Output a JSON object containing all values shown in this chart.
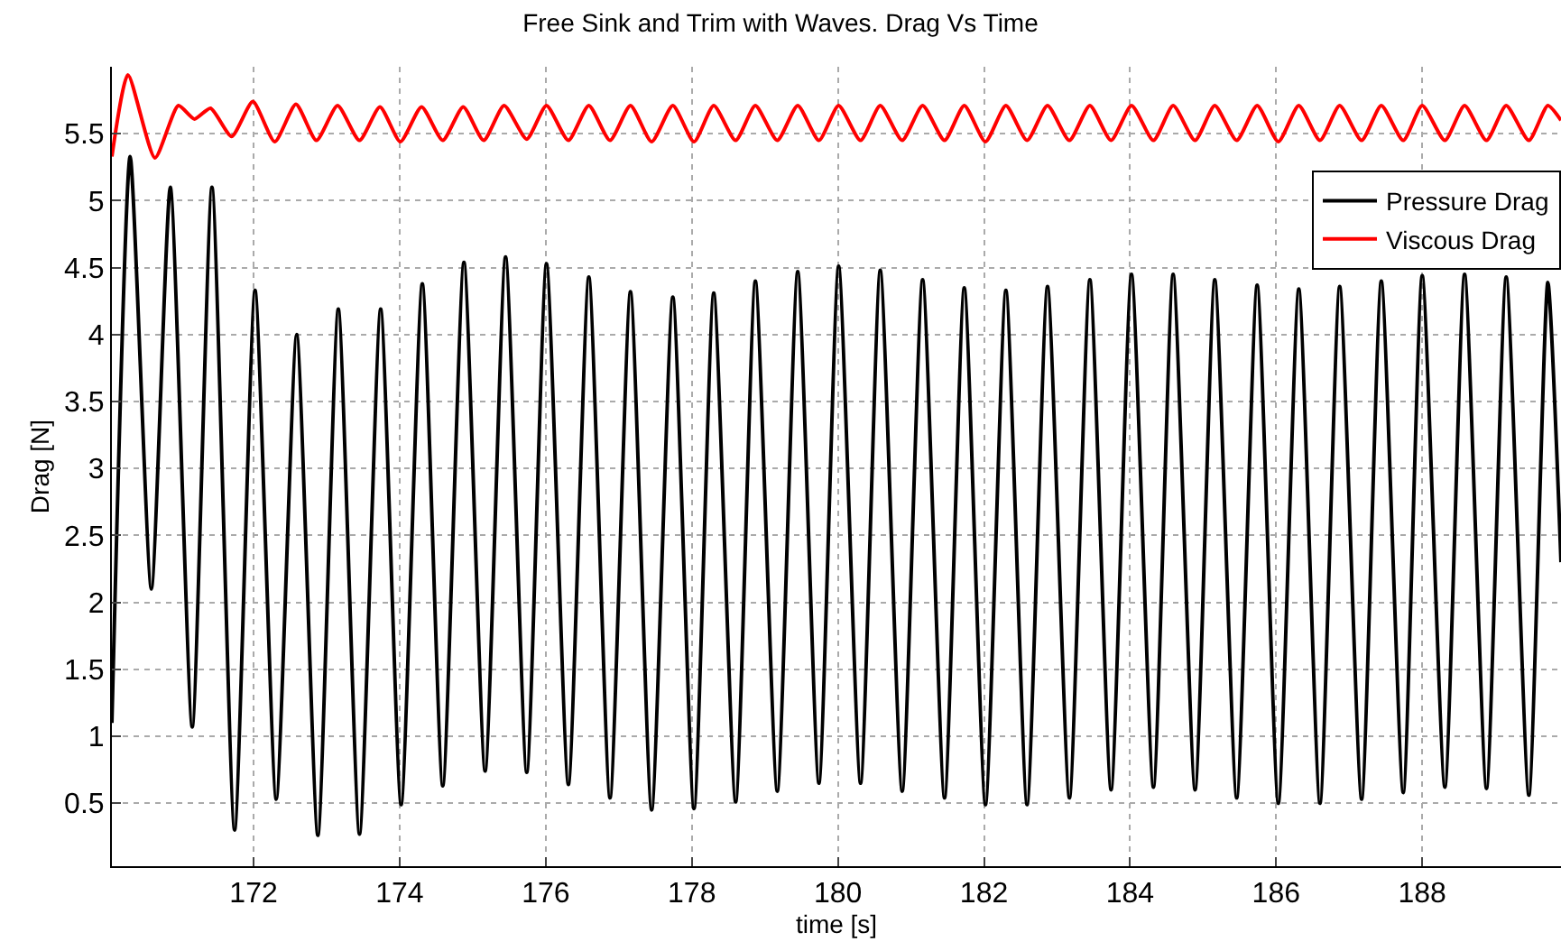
{
  "chart_data": {
    "type": "line",
    "title": "Free Sink and Trim with Waves. Drag Vs Time",
    "xlabel": "time [s]",
    "ylabel": "Drag [N]",
    "xlim": [
      170.06,
      189.9
    ],
    "xticks": [
      172,
      174,
      176,
      178,
      180,
      182,
      184,
      186,
      188
    ],
    "ylim": [
      0.03,
      6
    ],
    "yticks": [
      0.5,
      1,
      1.5,
      2,
      2.5,
      3,
      3.5,
      4,
      4.5,
      5,
      5.5
    ],
    "grid": true,
    "legend": "top right",
    "marker": "none",
    "line_style": "solid",
    "series": [
      {
        "name": "Pressure Drag",
        "color": "#000000",
        "x": [
          170.06,
          170.31,
          170.6,
          170.86,
          171.16,
          171.43,
          171.74,
          172.02,
          172.31,
          172.59,
          172.88,
          173.16,
          173.45,
          173.74,
          174.02,
          174.31,
          174.59,
          174.88,
          175.17,
          175.45,
          175.74,
          176.01,
          176.31,
          176.59,
          176.88,
          177.16,
          177.45,
          177.74,
          178.03,
          178.3,
          178.6,
          178.87,
          179.17,
          179.45,
          179.74,
          180.01,
          180.31,
          180.58,
          180.88,
          181.16,
          181.46,
          181.73,
          182.02,
          182.3,
          182.59,
          182.87,
          183.17,
          183.45,
          183.74,
          184.02,
          184.32,
          184.59,
          184.89,
          185.16,
          185.46,
          185.74,
          186.03,
          186.31,
          186.6,
          186.87,
          187.17,
          187.44,
          187.74,
          188.0,
          188.31,
          188.58,
          188.88,
          189.15,
          189.46,
          189.72,
          189.9
        ],
        "values": [
          1.1,
          5.33,
          2.1,
          5.1,
          1.07,
          5.1,
          0.3,
          4.33,
          0.53,
          4.0,
          0.26,
          4.19,
          0.27,
          4.19,
          0.49,
          4.38,
          0.63,
          4.54,
          0.74,
          4.58,
          0.73,
          4.53,
          0.64,
          4.43,
          0.54,
          4.32,
          0.45,
          4.28,
          0.46,
          4.31,
          0.51,
          4.4,
          0.59,
          4.47,
          0.65,
          4.51,
          0.65,
          4.48,
          0.59,
          4.41,
          0.54,
          4.35,
          0.49,
          4.33,
          0.49,
          4.36,
          0.54,
          4.41,
          0.6,
          4.45,
          0.62,
          4.45,
          0.6,
          4.41,
          0.54,
          4.37,
          0.5,
          4.34,
          0.5,
          4.36,
          0.53,
          4.4,
          0.58,
          4.44,
          0.62,
          4.45,
          0.61,
          4.43,
          0.56,
          4.39,
          2.3
        ]
      },
      {
        "name": "Viscous Drag",
        "color": "#ff0000",
        "x": [
          170.06,
          170.28,
          170.65,
          170.97,
          171.19,
          171.41,
          171.7,
          171.99,
          172.29,
          172.58,
          172.86,
          173.15,
          173.45,
          173.73,
          174.01,
          174.3,
          174.59,
          174.87,
          175.15,
          175.43,
          175.74,
          176.01,
          176.31,
          176.59,
          176.88,
          177.16,
          177.45,
          177.74,
          178.03,
          178.3,
          178.6,
          178.87,
          179.17,
          179.45,
          179.74,
          180.01,
          180.31,
          180.58,
          180.88,
          181.16,
          181.46,
          181.73,
          182.02,
          182.3,
          182.59,
          182.87,
          183.17,
          183.45,
          183.74,
          184.02,
          184.32,
          184.59,
          184.89,
          185.16,
          185.46,
          185.74,
          186.03,
          186.31,
          186.6,
          186.87,
          187.17,
          187.44,
          187.74,
          188.0,
          188.31,
          188.58,
          188.88,
          189.15,
          189.46,
          189.72,
          189.9
        ],
        "values": [
          5.33,
          5.94,
          5.32,
          5.71,
          5.61,
          5.69,
          5.48,
          5.74,
          5.44,
          5.72,
          5.45,
          5.71,
          5.45,
          5.7,
          5.44,
          5.7,
          5.45,
          5.7,
          5.45,
          5.71,
          5.46,
          5.71,
          5.45,
          5.71,
          5.45,
          5.71,
          5.44,
          5.71,
          5.44,
          5.71,
          5.45,
          5.71,
          5.45,
          5.71,
          5.45,
          5.71,
          5.45,
          5.71,
          5.45,
          5.71,
          5.45,
          5.71,
          5.44,
          5.71,
          5.45,
          5.71,
          5.45,
          5.71,
          5.45,
          5.71,
          5.45,
          5.71,
          5.45,
          5.71,
          5.45,
          5.71,
          5.44,
          5.71,
          5.45,
          5.71,
          5.45,
          5.71,
          5.45,
          5.71,
          5.45,
          5.71,
          5.45,
          5.71,
          5.45,
          5.71,
          5.6
        ]
      }
    ]
  }
}
